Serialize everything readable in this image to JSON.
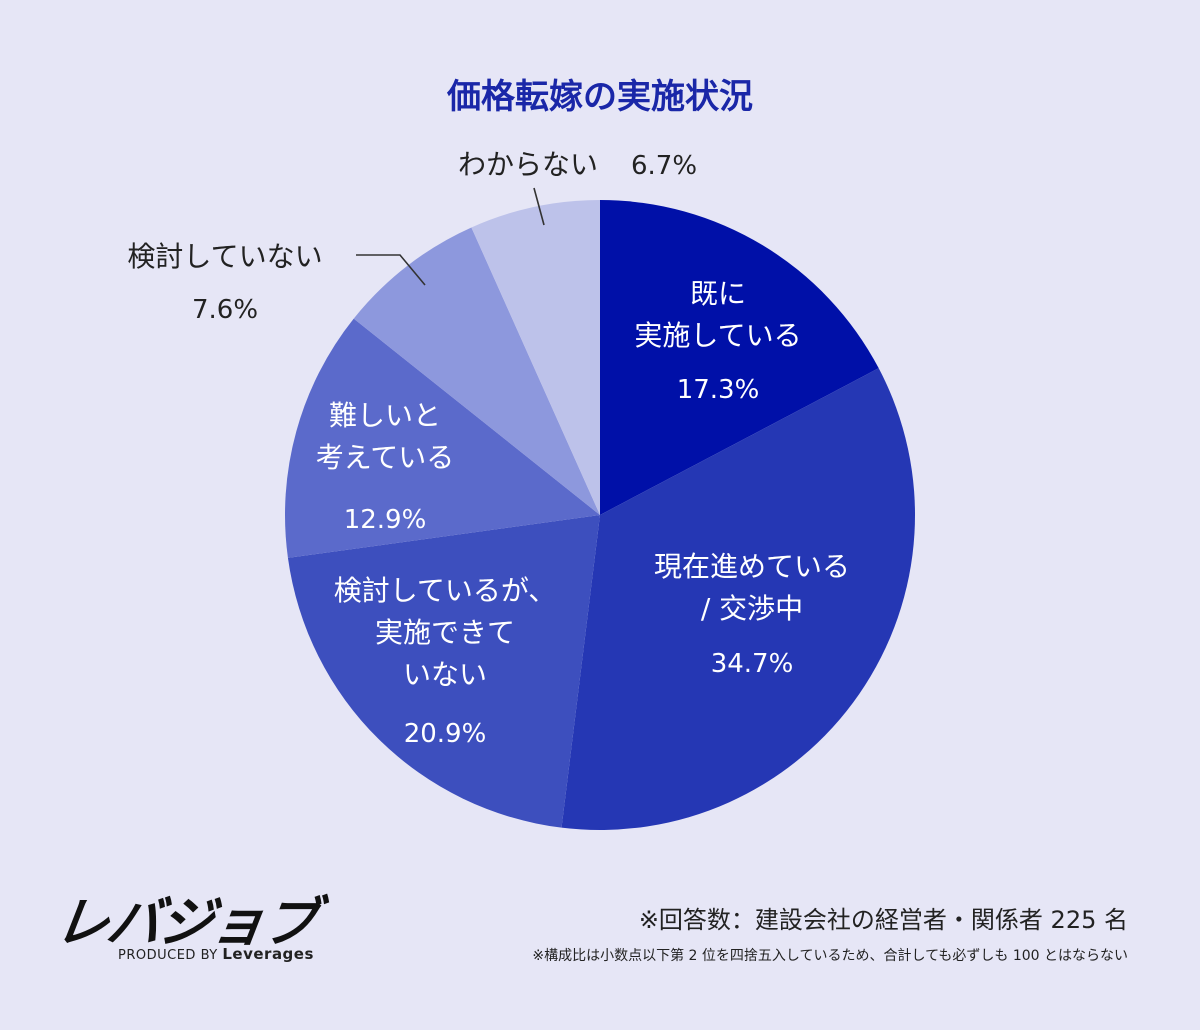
{
  "chart_data": {
    "type": "pie",
    "title": "価格転嫁の実施状況",
    "unit": "%",
    "slices": [
      {
        "lines": [
          "既に",
          "実施している"
        ],
        "value": 17.3,
        "value_label": "17.3%",
        "color": "#0010a8"
      },
      {
        "lines": [
          "現在進めている",
          "/ 交渉中"
        ],
        "value": 34.7,
        "value_label": "34.7%",
        "color": "#2537b4"
      },
      {
        "lines": [
          "検討しているが、",
          "実施できて",
          "いない"
        ],
        "value": 20.9,
        "value_label": "20.9%",
        "color": "#3d4fbe"
      },
      {
        "lines": [
          "難しいと",
          "考えている"
        ],
        "value": 12.9,
        "value_label": "12.9%",
        "color": "#5b6acb"
      },
      {
        "lines": [
          "検討していない"
        ],
        "value": 7.6,
        "value_label": "7.6%",
        "color": "#8d98dd"
      },
      {
        "lines": [
          "わからない"
        ],
        "value": 6.7,
        "value_label": "6.7%",
        "color": "#bdc2ea"
      }
    ]
  },
  "logo": {
    "name": "レバジョブ",
    "produced_by": "PRODUCED BY",
    "company": "Leverages"
  },
  "notes": {
    "respondents": "※回答数：建設会社の経営者・関係者 225 名",
    "rounding": "※構成比は小数点以下第 2 位を四捨五入しているため、合計しても必ずしも 100 とはならない"
  }
}
